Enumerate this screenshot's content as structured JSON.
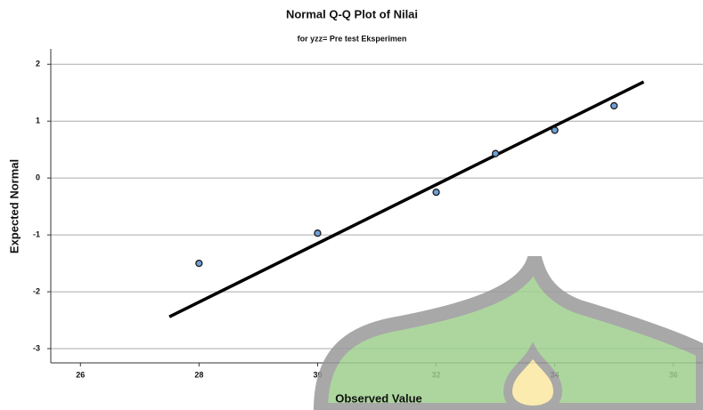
{
  "chart_data": {
    "type": "scatter",
    "title": "Normal Q-Q Plot of Nilai",
    "subtitle": "for yzz= Pre test Eksperimen",
    "x_label": "Observed Value",
    "y_label": "Expected Normal",
    "x": [
      28,
      30,
      32,
      33,
      34,
      35
    ],
    "values": [
      -1.5,
      -0.97,
      -0.25,
      0.43,
      0.84,
      1.27
    ],
    "color": "#6f9fd6",
    "reference_line": {
      "x": [
        27.5,
        35.5
      ],
      "values": [
        -2.44,
        1.69
      ],
      "color": "#000000"
    },
    "xlim": [
      25.5,
      36.5
    ],
    "ylim": [
      -3.25,
      2.27
    ],
    "xticks": [
      26,
      28,
      30,
      32,
      34,
      36
    ],
    "yticks": [
      -3,
      -2,
      -1,
      0,
      1,
      2
    ],
    "grid": true
  }
}
